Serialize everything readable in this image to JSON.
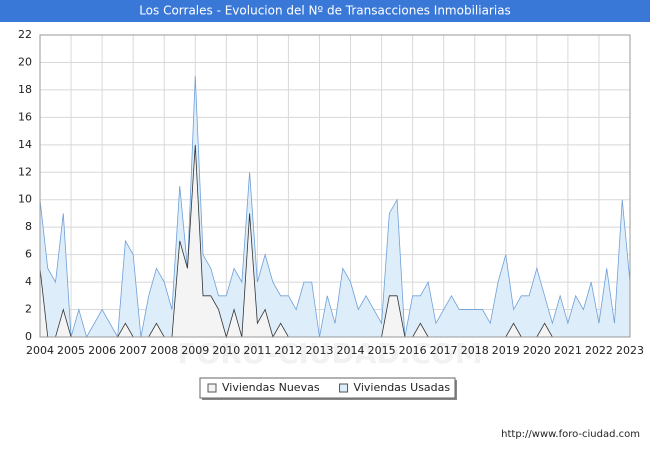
{
  "chart_data": {
    "type": "area",
    "title": "Los Corrales - Evolucion del Nº de Transacciones Inmobiliarias",
    "source": "http://www.foro-ciudad.com",
    "watermark": "FORO-CIUDAD.COM",
    "x": [
      2004,
      2004.25,
      2004.5,
      2004.75,
      2005,
      2005.25,
      2005.5,
      2005.75,
      2006,
      2006.25,
      2006.5,
      2006.75,
      2007,
      2007.25,
      2007.5,
      2007.75,
      2008,
      2008.25,
      2008.5,
      2008.75,
      2009,
      2009.25,
      2009.5,
      2009.75,
      2010,
      2010.25,
      2010.5,
      2010.75,
      2011,
      2011.25,
      2011.5,
      2011.75,
      2012,
      2012.25,
      2012.5,
      2012.75,
      2013,
      2013.25,
      2013.5,
      2013.75,
      2014,
      2014.25,
      2014.5,
      2014.75,
      2015,
      2015.25,
      2015.5,
      2015.75,
      2016,
      2016.25,
      2016.5,
      2016.75,
      2017,
      2017.25,
      2017.5,
      2017.75,
      2018,
      2018.25,
      2018.5,
      2018.75,
      2019,
      2019.25,
      2019.5,
      2019.75,
      2020,
      2020.25,
      2020.5,
      2020.75,
      2021,
      2021.25,
      2021.5,
      2021.75,
      2022,
      2022.25,
      2022.5,
      2022.75,
      2023
    ],
    "series": [
      {
        "name": "Viviendas Usadas",
        "color": "#6f9fd8",
        "fill": "#ddeefa",
        "values": [
          10,
          5,
          4,
          9,
          0,
          2,
          0,
          1,
          2,
          1,
          0,
          7,
          6,
          0,
          3,
          5,
          4,
          2,
          11,
          5,
          19,
          6,
          5,
          3,
          3,
          5,
          4,
          12,
          4,
          6,
          4,
          3,
          3,
          2,
          4,
          4,
          0,
          3,
          1,
          5,
          4,
          2,
          3,
          2,
          1,
          9,
          10,
          0,
          3,
          3,
          4,
          1,
          2,
          3,
          2,
          2,
          2,
          2,
          1,
          4,
          6,
          2,
          3,
          3,
          5,
          3,
          1,
          3,
          1,
          3,
          2,
          4,
          1,
          5,
          1,
          10,
          4
        ]
      },
      {
        "name": "Viviendas Nuevas",
        "color": "#333333",
        "fill": "#f4f4f4",
        "values": [
          5,
          0,
          0,
          2,
          0,
          0,
          0,
          0,
          0,
          0,
          0,
          1,
          0,
          0,
          0,
          1,
          0,
          0,
          7,
          5,
          14,
          3,
          3,
          2,
          0,
          2,
          0,
          9,
          1,
          2,
          0,
          1,
          0,
          0,
          0,
          0,
          0,
          0,
          0,
          0,
          0,
          0,
          0,
          0,
          0,
          3,
          3,
          0,
          0,
          1,
          0,
          0,
          0,
          0,
          0,
          0,
          0,
          0,
          0,
          0,
          0,
          1,
          0,
          0,
          0,
          1,
          0,
          0,
          0,
          0,
          0,
          0,
          0,
          0,
          0,
          0,
          0
        ]
      }
    ],
    "legend_order": [
      1,
      0
    ],
    "xlim": [
      2004,
      2023
    ],
    "xticks": [
      2004,
      2005,
      2006,
      2007,
      2008,
      2009,
      2010,
      2011,
      2012,
      2013,
      2014,
      2015,
      2016,
      2017,
      2018,
      2019,
      2020,
      2021,
      2022,
      2023
    ],
    "ylim": [
      0,
      22
    ],
    "yticks": [
      0,
      2,
      4,
      6,
      8,
      10,
      12,
      14,
      16,
      18,
      20,
      22
    ],
    "grid": true
  }
}
